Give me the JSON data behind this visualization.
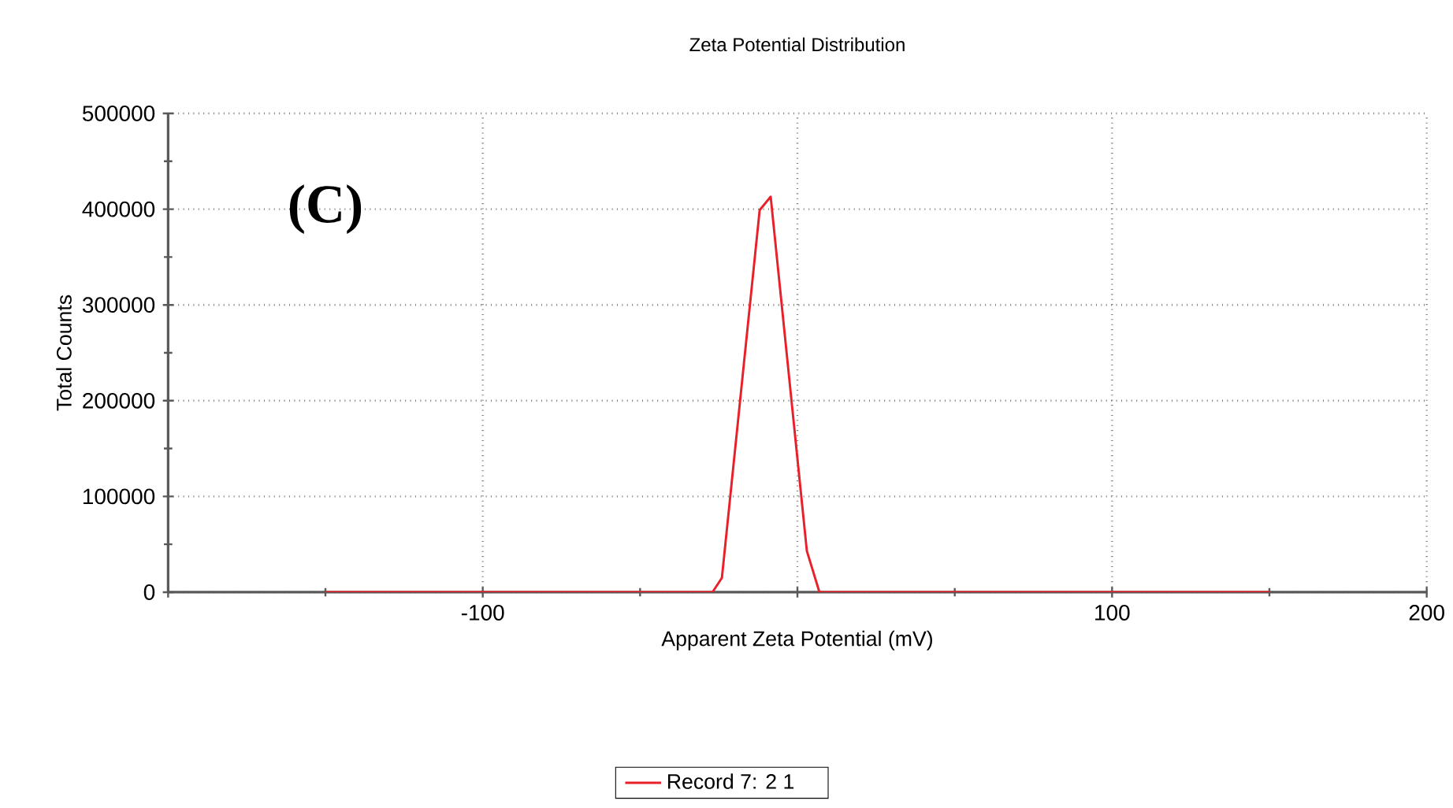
{
  "chart_data": {
    "type": "line",
    "title": "Zeta Potential Distribution",
    "xlabel": "Apparent Zeta Potential (mV)",
    "ylabel": "Total Counts",
    "annotations": [
      "(C)"
    ],
    "xlim": [
      -200,
      200
    ],
    "xticks": [
      {
        "value": -200,
        "label": null
      },
      -100,
      {
        "value": 0,
        "label": null
      },
      100,
      200
    ],
    "ylim": [
      0,
      500000
    ],
    "yticks": [
      0,
      100000,
      200000,
      300000,
      400000,
      500000
    ],
    "grid": true,
    "legend": "bottom",
    "marker": "none",
    "line_style": "solid",
    "series": [
      {
        "name": "Record 7: 2 1",
        "color": "#e8202a",
        "x": [
          -150,
          -100,
          -50,
          -27,
          -24,
          -12,
          -8.5,
          3,
          7,
          50,
          100,
          150
        ],
        "values": [
          0,
          0,
          0,
          0,
          15000,
          399000,
          413000,
          43000,
          0,
          0,
          0,
          0
        ]
      }
    ]
  }
}
